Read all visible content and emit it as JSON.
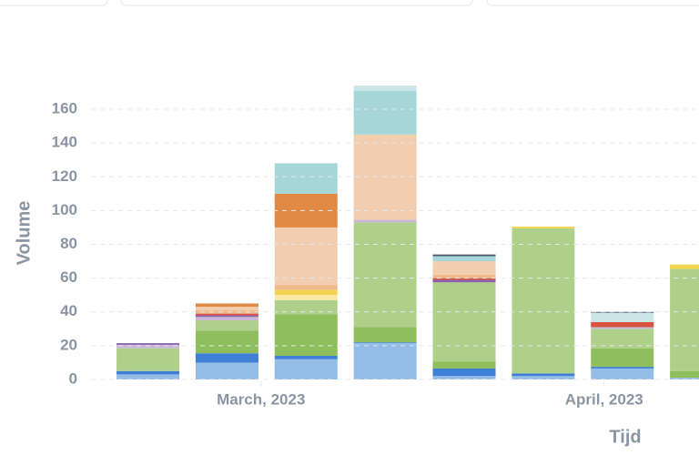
{
  "chart_data": {
    "type": "stacked_bar",
    "x_label": "Tijd",
    "y_label": "Volume",
    "x": [
      0,
      1,
      2,
      3,
      4,
      5,
      6,
      7
    ],
    "xlim": [
      -0.72,
      6.97
    ],
    "xticks": [
      {
        "value": 1.43,
        "label": "March, 2023"
      },
      {
        "value": 5.77,
        "label": "April, 2023"
      }
    ],
    "ylim": [
      0,
      175
    ],
    "yticks": [
      0,
      20,
      40,
      60,
      80,
      100,
      120,
      140,
      160
    ],
    "grid": true,
    "series": [
      {
        "color": "#93bde6",
        "values": [
          3,
          10,
          12,
          21.5,
          2,
          2,
          6.5,
          1
        ]
      },
      {
        "color": "#3f7fd6",
        "values": [
          2,
          5.5,
          2,
          0.5,
          4.5,
          1.5,
          1,
          0
        ]
      },
      {
        "color": "#8fbf5d",
        "values": [
          0,
          13.5,
          24.5,
          9,
          4,
          0,
          11,
          4
        ]
      },
      {
        "color": "#afd08a",
        "values": [
          13.5,
          6,
          8.5,
          62,
          47,
          86,
          11.5,
          60.5
        ]
      },
      {
        "color": "#fbe8a6",
        "values": [
          0,
          0,
          3,
          0,
          0,
          0,
          0,
          0
        ]
      },
      {
        "color": "#f2d44e",
        "values": [
          0,
          0,
          3,
          0,
          0,
          1,
          0,
          2.5
        ]
      },
      {
        "color": "#c9b6d9",
        "values": [
          2,
          2,
          0,
          1.5,
          0,
          0,
          1,
          0
        ]
      },
      {
        "color": "#8a63a8",
        "values": [
          1,
          1,
          0,
          0,
          1.5,
          0,
          0,
          0
        ]
      },
      {
        "color": "#d9533f",
        "values": [
          0,
          1,
          0,
          0,
          1,
          0,
          3,
          0
        ]
      },
      {
        "color": "#f0b98b",
        "values": [
          0,
          2,
          3,
          0,
          2,
          0,
          0,
          0
        ]
      },
      {
        "color": "#f2cdaf",
        "values": [
          0,
          2,
          34,
          50.5,
          8,
          0,
          0,
          0
        ]
      },
      {
        "color": "#e08a45",
        "values": [
          0,
          2,
          20,
          0,
          0,
          0,
          0,
          0
        ]
      },
      {
        "color": "#a6d6d8",
        "values": [
          0,
          0,
          18,
          26,
          3,
          0,
          0,
          0
        ]
      },
      {
        "color": "#cce6e8",
        "values": [
          0,
          0,
          0,
          3,
          0,
          0,
          5.5,
          0
        ]
      },
      {
        "color": "#4b5a6b",
        "values": [
          0,
          0,
          0,
          0,
          1,
          0,
          0.5,
          0
        ]
      }
    ]
  }
}
